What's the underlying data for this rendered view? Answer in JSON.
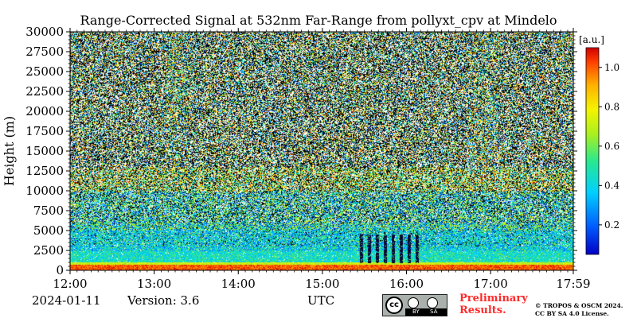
{
  "chart_data": {
    "type": "heatmap",
    "title": "Range-Corrected Signal at 532nm Far-Range from pollyxt_cpv at Mindelo",
    "xlabel": "UTC",
    "ylabel": "Height (m)",
    "x_tick_labels": [
      "12:00",
      "13:00",
      "14:00",
      "15:00",
      "16:00",
      "17:00",
      "17:59"
    ],
    "xlim": [
      "12:00",
      "17:59"
    ],
    "y_ticks": [
      0,
      2500,
      5000,
      7500,
      10000,
      12500,
      15000,
      17500,
      20000,
      22500,
      25000,
      27500,
      30000
    ],
    "ylim": [
      0,
      30000
    ],
    "colorbar": {
      "unit": "[a.u.]",
      "ticks": [
        0.2,
        0.4,
        0.6,
        0.8,
        1.0
      ],
      "tick_labels": [
        "0.2",
        "0.4",
        "0.6",
        "0.8",
        "1.0"
      ],
      "range": [
        0.05,
        1.1
      ],
      "colormap": "jet"
    },
    "grid": false,
    "features": [
      {
        "label": "near-surface high-signal layer",
        "height_range_m": [
          0,
          1000
        ],
        "value": 1.0
      },
      {
        "label": "boundary-layer aerosol",
        "height_range_m": [
          1000,
          2500
        ],
        "value": 0.45
      },
      {
        "label": "signal gap columns",
        "time_range": [
          "15:24",
          "16:12"
        ],
        "height_range_m": [
          1000,
          4500
        ]
      },
      {
        "label": "upper scattered layer",
        "height_range_m": [
          10000,
          13000
        ],
        "value": 0.6
      }
    ]
  },
  "footer": {
    "date": "2024-01-11",
    "version": "Version: 3.6",
    "preliminary": [
      "Preliminary",
      "Results."
    ],
    "credit": [
      "© TROPOS & OSCM 2024.",
      "CC BY SA 4.0 License."
    ]
  },
  "license_badge": {
    "strip_labels": [
      "BY",
      "SA"
    ]
  },
  "colors": {
    "preliminary_text": "#ff2a2a",
    "badge_background": "#aab1ad"
  }
}
